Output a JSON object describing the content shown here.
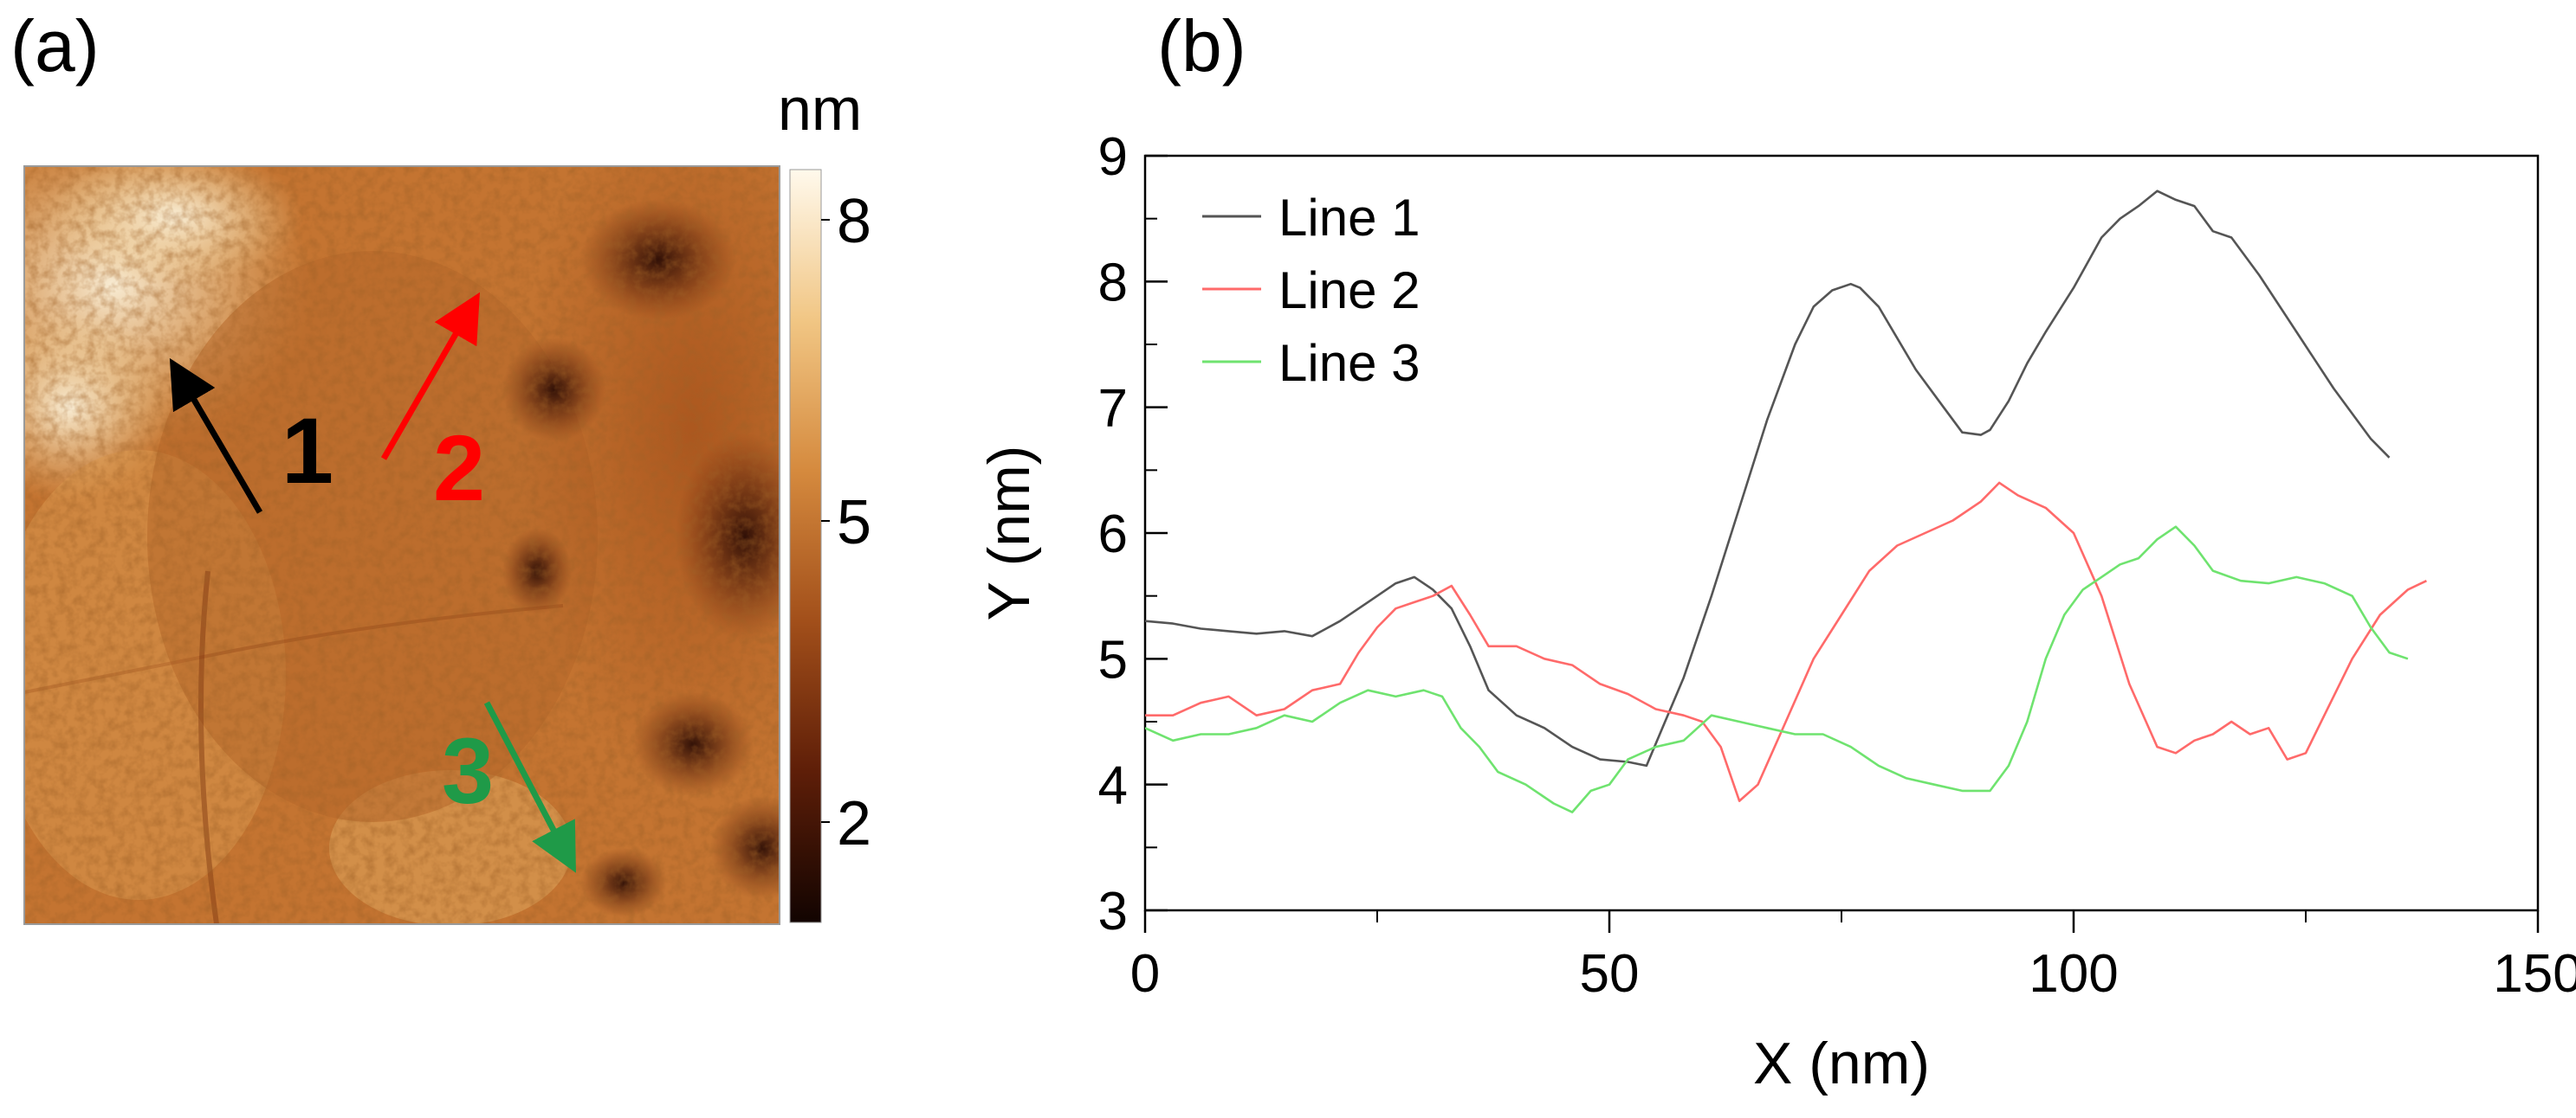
{
  "panel_a": {
    "label": "(a)",
    "colorbar": {
      "unit": "nm",
      "ticks": [
        8,
        5,
        2
      ],
      "range": [
        1,
        8.5
      ],
      "colors": [
        "#120401",
        "#5e1e08",
        "#a24f1a",
        "#d58a3e",
        "#f1c684",
        "#fff9ec"
      ]
    },
    "arrows": [
      {
        "label": "1",
        "color": "#000000"
      },
      {
        "label": "2",
        "color": "#ff0000"
      },
      {
        "label": "3",
        "color": "#1f9a48"
      }
    ]
  },
  "panel_b": {
    "label": "(b)"
  },
  "chart_data": {
    "type": "line",
    "title": "",
    "xlabel": "X (nm)",
    "ylabel": "Y (nm)",
    "xlim": [
      0,
      150
    ],
    "ylim": [
      3,
      9
    ],
    "xticks": [
      0,
      50,
      100,
      150
    ],
    "yticks": [
      3,
      4,
      5,
      6,
      7,
      8,
      9
    ],
    "grid": false,
    "legend": "top-left",
    "series": [
      {
        "name": "Line 1",
        "color": "#555555",
        "x": [
          0,
          3,
          6,
          9,
          12,
          15,
          18,
          21,
          24,
          27,
          29,
          31,
          33,
          35,
          37,
          40,
          43,
          46,
          49,
          52,
          54,
          56,
          58,
          61,
          64,
          67,
          70,
          72,
          74,
          76,
          77,
          79,
          81,
          83,
          86,
          88,
          90,
          91,
          93,
          95,
          97,
          100,
          103,
          105,
          107,
          109,
          111,
          113,
          115,
          117,
          120,
          124,
          128,
          132,
          134
        ],
        "y": [
          5.3,
          5.28,
          5.24,
          5.22,
          5.2,
          5.22,
          5.18,
          5.3,
          5.45,
          5.6,
          5.65,
          5.55,
          5.4,
          5.1,
          4.75,
          4.55,
          4.45,
          4.3,
          4.2,
          4.18,
          4.15,
          4.5,
          4.85,
          5.5,
          6.2,
          6.9,
          7.5,
          7.8,
          7.93,
          7.98,
          7.95,
          7.8,
          7.55,
          7.3,
          7.0,
          6.8,
          6.78,
          6.82,
          7.05,
          7.35,
          7.6,
          7.95,
          8.35,
          8.5,
          8.6,
          8.72,
          8.65,
          8.6,
          8.4,
          8.35,
          8.05,
          7.6,
          7.15,
          6.75,
          6.6
        ]
      },
      {
        "name": "Line 2",
        "color": "#ff6a6a",
        "x": [
          0,
          3,
          6,
          9,
          12,
          15,
          18,
          21,
          23,
          25,
          27,
          29,
          31,
          33,
          35,
          37,
          40,
          43,
          46,
          49,
          52,
          55,
          58,
          60,
          62,
          64,
          66,
          69,
          72,
          75,
          78,
          81,
          84,
          87,
          90,
          92,
          94,
          97,
          100,
          103,
          106,
          109,
          111,
          113,
          115,
          117,
          119,
          121,
          123,
          125,
          127,
          130,
          133,
          136,
          138
        ],
        "y": [
          4.55,
          4.55,
          4.65,
          4.7,
          4.55,
          4.6,
          4.75,
          4.8,
          5.05,
          5.25,
          5.4,
          5.45,
          5.5,
          5.58,
          5.35,
          5.1,
          5.1,
          5.0,
          4.95,
          4.8,
          4.72,
          4.6,
          4.55,
          4.5,
          4.3,
          3.87,
          4.0,
          4.5,
          5.0,
          5.35,
          5.7,
          5.9,
          6.0,
          6.1,
          6.25,
          6.4,
          6.3,
          6.2,
          6.0,
          5.5,
          4.8,
          4.3,
          4.25,
          4.35,
          4.4,
          4.5,
          4.4,
          4.45,
          4.2,
          4.25,
          4.55,
          5.0,
          5.35,
          5.55,
          5.62
        ]
      },
      {
        "name": "Line 3",
        "color": "#6fe36f",
        "x": [
          0,
          3,
          6,
          9,
          12,
          15,
          18,
          21,
          24,
          27,
          30,
          32,
          34,
          36,
          38,
          41,
          44,
          46,
          48,
          50,
          52,
          55,
          58,
          61,
          64,
          67,
          70,
          73,
          76,
          79,
          82,
          85,
          88,
          91,
          93,
          95,
          97,
          99,
          101,
          103,
          105,
          107,
          109,
          111,
          113,
          115,
          118,
          121,
          124,
          127,
          130,
          132,
          134,
          136
        ],
        "y": [
          4.45,
          4.35,
          4.4,
          4.4,
          4.45,
          4.55,
          4.5,
          4.65,
          4.75,
          4.7,
          4.75,
          4.7,
          4.45,
          4.3,
          4.1,
          4.0,
          3.85,
          3.78,
          3.95,
          4.0,
          4.2,
          4.3,
          4.35,
          4.55,
          4.5,
          4.45,
          4.4,
          4.4,
          4.3,
          4.15,
          4.05,
          4.0,
          3.95,
          3.95,
          4.15,
          4.5,
          5.0,
          5.35,
          5.55,
          5.65,
          5.75,
          5.8,
          5.95,
          6.05,
          5.9,
          5.7,
          5.62,
          5.6,
          5.65,
          5.6,
          5.5,
          5.25,
          5.05,
          5.0
        ]
      }
    ]
  }
}
